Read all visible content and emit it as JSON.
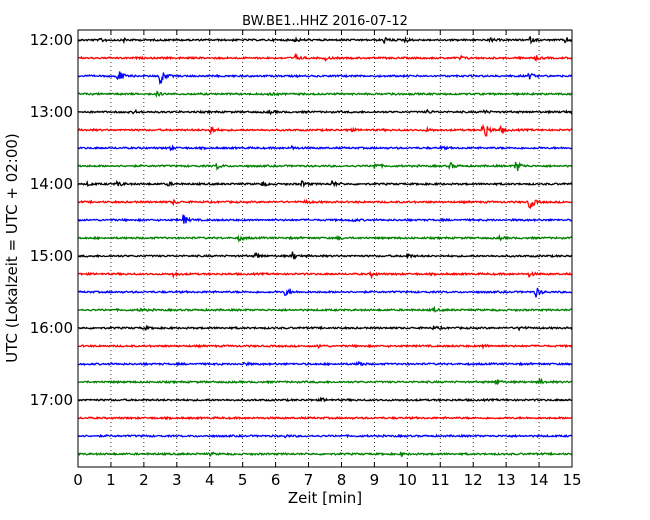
{
  "chart_data": {
    "type": "line",
    "title": "BW.BE1..HHZ 2016-07-12",
    "xlabel": "Zeit  [min]",
    "ylabel": "UTC (Lokalzeit = UTC + 02:00)",
    "xlim": [
      0,
      15
    ],
    "x_ticks": [
      "0",
      "1",
      "2",
      "3",
      "4",
      "5",
      "6",
      "7",
      "8",
      "9",
      "10",
      "11",
      "12",
      "13",
      "14",
      "15"
    ],
    "y_tick_labels": [
      "12:00",
      "13:00",
      "14:00",
      "15:00",
      "16:00",
      "17:00"
    ],
    "grid": "vertical dotted",
    "trace_interval_minutes": 15,
    "trace_colors": [
      "#000000",
      "#ff0000",
      "#0000ff",
      "#008000"
    ],
    "traces": [
      {
        "start": "12:00",
        "events": [
          [
            0.7,
            0.35
          ],
          [
            1.4,
            0.3
          ],
          [
            6.6,
            0.35
          ],
          [
            9.3,
            0.6
          ],
          [
            9.9,
            0.45
          ],
          [
            12.5,
            0.4
          ],
          [
            13.7,
            0.6
          ],
          [
            14.8,
            0.55
          ]
        ]
      },
      {
        "start": "12:15",
        "events": [
          [
            6.6,
            0.5
          ],
          [
            7.5,
            0.35
          ],
          [
            11.6,
            0.35
          ],
          [
            13.9,
            0.4
          ]
        ]
      },
      {
        "start": "12:30",
        "events": [
          [
            1.2,
            1.6
          ],
          [
            2.5,
            1.8
          ],
          [
            13.7,
            0.6
          ]
        ]
      },
      {
        "start": "12:45",
        "events": [
          [
            2.4,
            0.35
          ],
          [
            5.8,
            0.3
          ],
          [
            9.5,
            0.3
          ]
        ]
      },
      {
        "start": "13:00",
        "events": [
          [
            1.7,
            0.3
          ],
          [
            5.8,
            0.3
          ],
          [
            10.6,
            0.35
          ],
          [
            12.3,
            0.4
          ],
          [
            14.7,
            0.3
          ]
        ]
      },
      {
        "start": "13:15",
        "events": [
          [
            4.0,
            1.0
          ],
          [
            8.2,
            0.4
          ],
          [
            10.6,
            0.35
          ],
          [
            12.3,
            2.8
          ],
          [
            12.8,
            0.7
          ]
        ]
      },
      {
        "start": "13:30",
        "events": [
          [
            2.8,
            0.3
          ],
          [
            6.5,
            0.3
          ],
          [
            11.0,
            0.35
          ]
        ]
      },
      {
        "start": "13:45",
        "events": [
          [
            4.2,
            0.6
          ],
          [
            9.0,
            0.6
          ],
          [
            11.3,
            0.6
          ],
          [
            13.3,
            1.3
          ]
        ]
      },
      {
        "start": "14:00",
        "events": [
          [
            0.3,
            0.3
          ],
          [
            1.2,
            0.6
          ],
          [
            2.7,
            0.4
          ],
          [
            5.6,
            0.4
          ],
          [
            6.8,
            0.5
          ],
          [
            7.7,
            0.7
          ]
        ]
      },
      {
        "start": "14:15",
        "events": [
          [
            2.9,
            0.35
          ],
          [
            6.9,
            0.3
          ],
          [
            13.7,
            1.8
          ]
        ]
      },
      {
        "start": "14:30",
        "events": [
          [
            3.2,
            1.0
          ],
          [
            8.3,
            0.3
          ]
        ]
      },
      {
        "start": "14:45",
        "events": [
          [
            4.9,
            0.5
          ],
          [
            7.9,
            0.3
          ],
          [
            12.8,
            0.3
          ]
        ]
      },
      {
        "start": "15:00",
        "events": [
          [
            5.4,
            0.5
          ],
          [
            6.5,
            0.9
          ],
          [
            10.0,
            0.4
          ]
        ]
      },
      {
        "start": "15:15",
        "events": [
          [
            2.9,
            0.4
          ],
          [
            8.9,
            0.5
          ],
          [
            13.7,
            0.5
          ]
        ]
      },
      {
        "start": "15:30",
        "events": [
          [
            6.3,
            0.8
          ],
          [
            13.9,
            1.0
          ]
        ]
      },
      {
        "start": "15:45",
        "events": [
          [
            1.9,
            0.3
          ],
          [
            10.8,
            0.3
          ]
        ]
      },
      {
        "start": "16:00",
        "events": [
          [
            2.0,
            0.3
          ],
          [
            10.8,
            0.3
          ],
          [
            13.4,
            0.45
          ]
        ]
      },
      {
        "start": "16:15",
        "events": [
          [
            7.3,
            0.3
          ],
          [
            12.3,
            0.3
          ]
        ]
      },
      {
        "start": "16:30",
        "events": [
          [
            8.5,
            0.6
          ],
          [
            5.0,
            0.3
          ]
        ]
      },
      {
        "start": "16:45",
        "events": [
          [
            12.7,
            0.6
          ],
          [
            14.0,
            0.55
          ]
        ]
      },
      {
        "start": "17:00",
        "events": [
          [
            7.4,
            0.3
          ]
        ]
      },
      {
        "start": "17:15",
        "events": []
      },
      {
        "start": "17:30",
        "events": [
          [
            6.3,
            0.2
          ]
        ]
      },
      {
        "start": "17:45",
        "events": [
          [
            4.0,
            0.25
          ],
          [
            9.8,
            0.2
          ]
        ]
      }
    ]
  }
}
